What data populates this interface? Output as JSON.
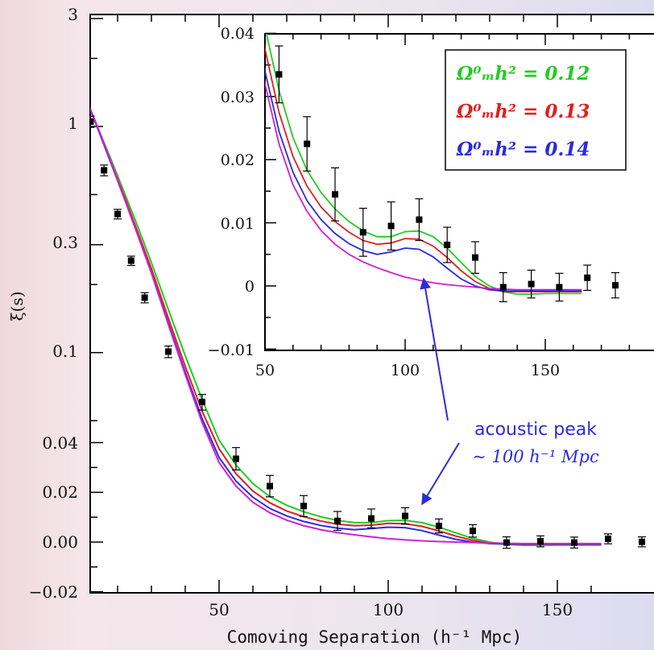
{
  "chart_data": [
    {
      "type": "line",
      "panel": "main",
      "xlabel": "Comoving Separation (h⁻¹ Mpc)",
      "ylabel": "ξ(s)",
      "xlim": [
        10,
        163
      ],
      "xticks": [
        "50",
        "100",
        "150"
      ],
      "yticks": [
        "3",
        "1",
        "0.3",
        "0.1",
        "0.04",
        "0.02",
        "0.00",
        "−0.02"
      ],
      "yscale": "mixed: linear for ξ < 0.04, logarithmic above",
      "series": [
        {
          "color": "#22cc22",
          "x": [
            10,
            14,
            18,
            22,
            26,
            30,
            35,
            40,
            45,
            50,
            55,
            60,
            65,
            70,
            75,
            80,
            85,
            90,
            95,
            100,
            105,
            110,
            115,
            120,
            125,
            130,
            135,
            140,
            145,
            150,
            155,
            163
          ],
          "y": [
            1.4,
            1.0,
            0.72,
            0.51,
            0.36,
            0.25,
            0.155,
            0.097,
            0.062,
            0.041,
            0.031,
            0.0235,
            0.0183,
            0.0148,
            0.0122,
            0.0102,
            0.0087,
            0.0078,
            0.0078,
            0.0086,
            0.0087,
            0.0078,
            0.006,
            0.0037,
            0.0015,
            0.0,
            -0.0009,
            -0.0013,
            -0.0013,
            -0.0012,
            -0.0012,
            -0.0012
          ]
        },
        {
          "color": "#e02020",
          "x": [
            10,
            14,
            18,
            22,
            26,
            30,
            35,
            40,
            45,
            50,
            55,
            60,
            65,
            70,
            75,
            80,
            85,
            90,
            95,
            100,
            105,
            110,
            115,
            120,
            125,
            130,
            135,
            140,
            145,
            150,
            155,
            163
          ],
          "y": [
            1.4,
            1.0,
            0.7,
            0.49,
            0.34,
            0.235,
            0.142,
            0.087,
            0.055,
            0.0375,
            0.0275,
            0.0205,
            0.0158,
            0.0125,
            0.0102,
            0.0085,
            0.0072,
            0.0066,
            0.0068,
            0.0075,
            0.0074,
            0.0063,
            0.0045,
            0.0024,
            0.0007,
            -0.0004,
            -0.0009,
            -0.0009,
            -0.0009,
            -0.0009,
            -0.0009,
            -0.0009
          ]
        },
        {
          "color": "#2a2ae0",
          "x": [
            10,
            14,
            18,
            22,
            26,
            30,
            35,
            40,
            45,
            50,
            55,
            60,
            65,
            70,
            75,
            80,
            85,
            90,
            95,
            100,
            105,
            110,
            115,
            120,
            125,
            130,
            135,
            140,
            145,
            150,
            155,
            163
          ],
          "y": [
            1.4,
            0.99,
            0.69,
            0.48,
            0.33,
            0.225,
            0.135,
            0.082,
            0.051,
            0.034,
            0.0245,
            0.018,
            0.0135,
            0.0105,
            0.0083,
            0.0067,
            0.0056,
            0.005,
            0.0054,
            0.006,
            0.0058,
            0.0046,
            0.0028,
            0.0011,
            0.0,
            -0.0006,
            -0.0008,
            -0.0008,
            -0.0008,
            -0.0008,
            -0.0008,
            -0.0008
          ]
        },
        {
          "color": "#d020d0",
          "x": [
            10,
            14,
            18,
            22,
            26,
            30,
            35,
            40,
            45,
            50,
            55,
            60,
            65,
            70,
            75,
            80,
            85,
            90,
            95,
            100,
            105,
            110,
            115,
            120,
            125,
            130,
            135,
            140,
            145,
            150,
            155,
            163
          ],
          "y": [
            1.42,
            1.0,
            0.7,
            0.48,
            0.33,
            0.225,
            0.133,
            0.08,
            0.049,
            0.032,
            0.0225,
            0.016,
            0.0118,
            0.0088,
            0.0066,
            0.005,
            0.0038,
            0.0029,
            0.0021,
            0.0014,
            0.0009,
            0.0005,
            0.0002,
            0.0,
            -0.0002,
            -0.0004,
            -0.0005,
            -0.0006,
            -0.0006,
            -0.0006,
            -0.0006,
            -0.0006
          ]
        }
      ],
      "points": {
        "x": [
          12,
          16,
          20,
          24,
          28,
          35,
          45,
          55,
          65,
          75,
          85,
          95,
          105,
          115,
          125,
          135,
          145,
          155,
          165,
          175
        ],
        "y": [
          1.05,
          0.64,
          0.41,
          0.255,
          0.175,
          0.101,
          0.0605,
          0.0335,
          0.0225,
          0.0145,
          0.0085,
          0.0095,
          0.0105,
          0.0065,
          0.0045,
          -0.0002,
          0.0003,
          -0.0002,
          0.0013,
          0.0001
        ],
        "err": [
          0.06,
          0.035,
          0.02,
          0.012,
          0.009,
          0.006,
          0.0048,
          0.0045,
          0.0043,
          0.0042,
          0.0038,
          0.0038,
          0.0033,
          0.0028,
          0.0025,
          0.0023,
          0.0022,
          0.0022,
          0.002,
          0.002
        ]
      }
    },
    {
      "type": "line",
      "panel": "inset",
      "xlim": [
        50,
        180
      ],
      "ylim": [
        -0.01,
        0.04
      ],
      "xticks": [
        "50",
        "100",
        "150"
      ],
      "yticks": [
        "0.04",
        "0.03",
        "0.02",
        "0.01",
        "0",
        "−0.01"
      ],
      "legend_position": "top-right",
      "legend": [
        {
          "text": "Ω⁰ₘh² = 0.12",
          "color": "#22cc22"
        },
        {
          "text": "Ω⁰ₘh² = 0.13",
          "color": "#e02020"
        },
        {
          "text": "Ω⁰ₘh² = 0.14",
          "color": "#2a2ae0"
        }
      ]
    }
  ],
  "annotation": {
    "line1": "acoustic peak",
    "line2": "∼ 100 h⁻¹ Mpc",
    "color": "#2b2be0"
  }
}
